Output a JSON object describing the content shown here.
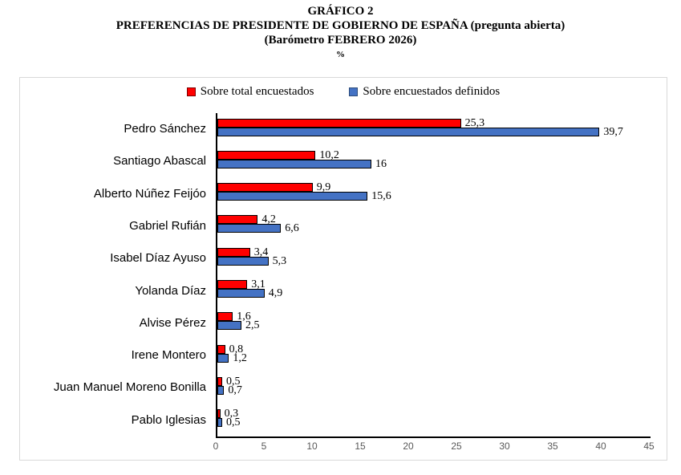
{
  "title": {
    "line1": "GRÁFICO 2",
    "line2": "PREFERENCIAS DE PRESIDENTE DE GOBIERNO DE ESPAÑA (pregunta abierta)",
    "line3": "(Barómetro FEBRERO 2026)",
    "units": "%"
  },
  "legend": {
    "total_label": "Sobre total encuestados",
    "defined_label": "Sobre encuestados definidos"
  },
  "colors": {
    "total_series": "#ff0000",
    "defined_series": "#4472c4",
    "bar_border": "#000000",
    "frame_border": "#d9d9d9",
    "tick_text": "#595959"
  },
  "chart_data": {
    "type": "bar",
    "orientation": "horizontal",
    "title": "GRÁFICO 2 — PREFERENCIAS DE PRESIDENTE DE GOBIERNO DE ESPAÑA (pregunta abierta) (Barómetro FEBRERO 2026)",
    "xlabel": "%",
    "ylabel": "",
    "grid": false,
    "legend_position": "top",
    "xlim": [
      0,
      45
    ],
    "x_ticks": [
      0,
      5,
      10,
      15,
      20,
      25,
      30,
      35,
      40,
      45
    ],
    "categories": [
      "Pedro Sánchez",
      "Santiago Abascal",
      "Alberto Núñez Feijóo",
      "Gabriel Rufián",
      "Isabel Díaz Ayuso",
      "Yolanda Díaz",
      "Alvise Pérez",
      "Irene Montero",
      "Juan Manuel Moreno Bonilla",
      "Pablo Iglesias"
    ],
    "series": [
      {
        "name": "Sobre total encuestados",
        "color": "#ff0000",
        "values": [
          25.3,
          10.2,
          9.9,
          4.2,
          3.4,
          3.1,
          1.6,
          0.8,
          0.5,
          0.3
        ],
        "labels": [
          "25,3",
          "10,2",
          "9,9",
          "4,2",
          "3,4",
          "3,1",
          "1,6",
          "0,8",
          "0,5",
          "0,3"
        ]
      },
      {
        "name": "Sobre encuestados definidos",
        "color": "#4472c4",
        "values": [
          39.7,
          16,
          15.6,
          6.6,
          5.3,
          4.9,
          2.5,
          1.2,
          0.7,
          0.5
        ],
        "labels": [
          "39,7",
          "16",
          "15,6",
          "6,6",
          "5,3",
          "4,9",
          "2,5",
          "1,2",
          "0,7",
          "0,5"
        ]
      }
    ]
  }
}
